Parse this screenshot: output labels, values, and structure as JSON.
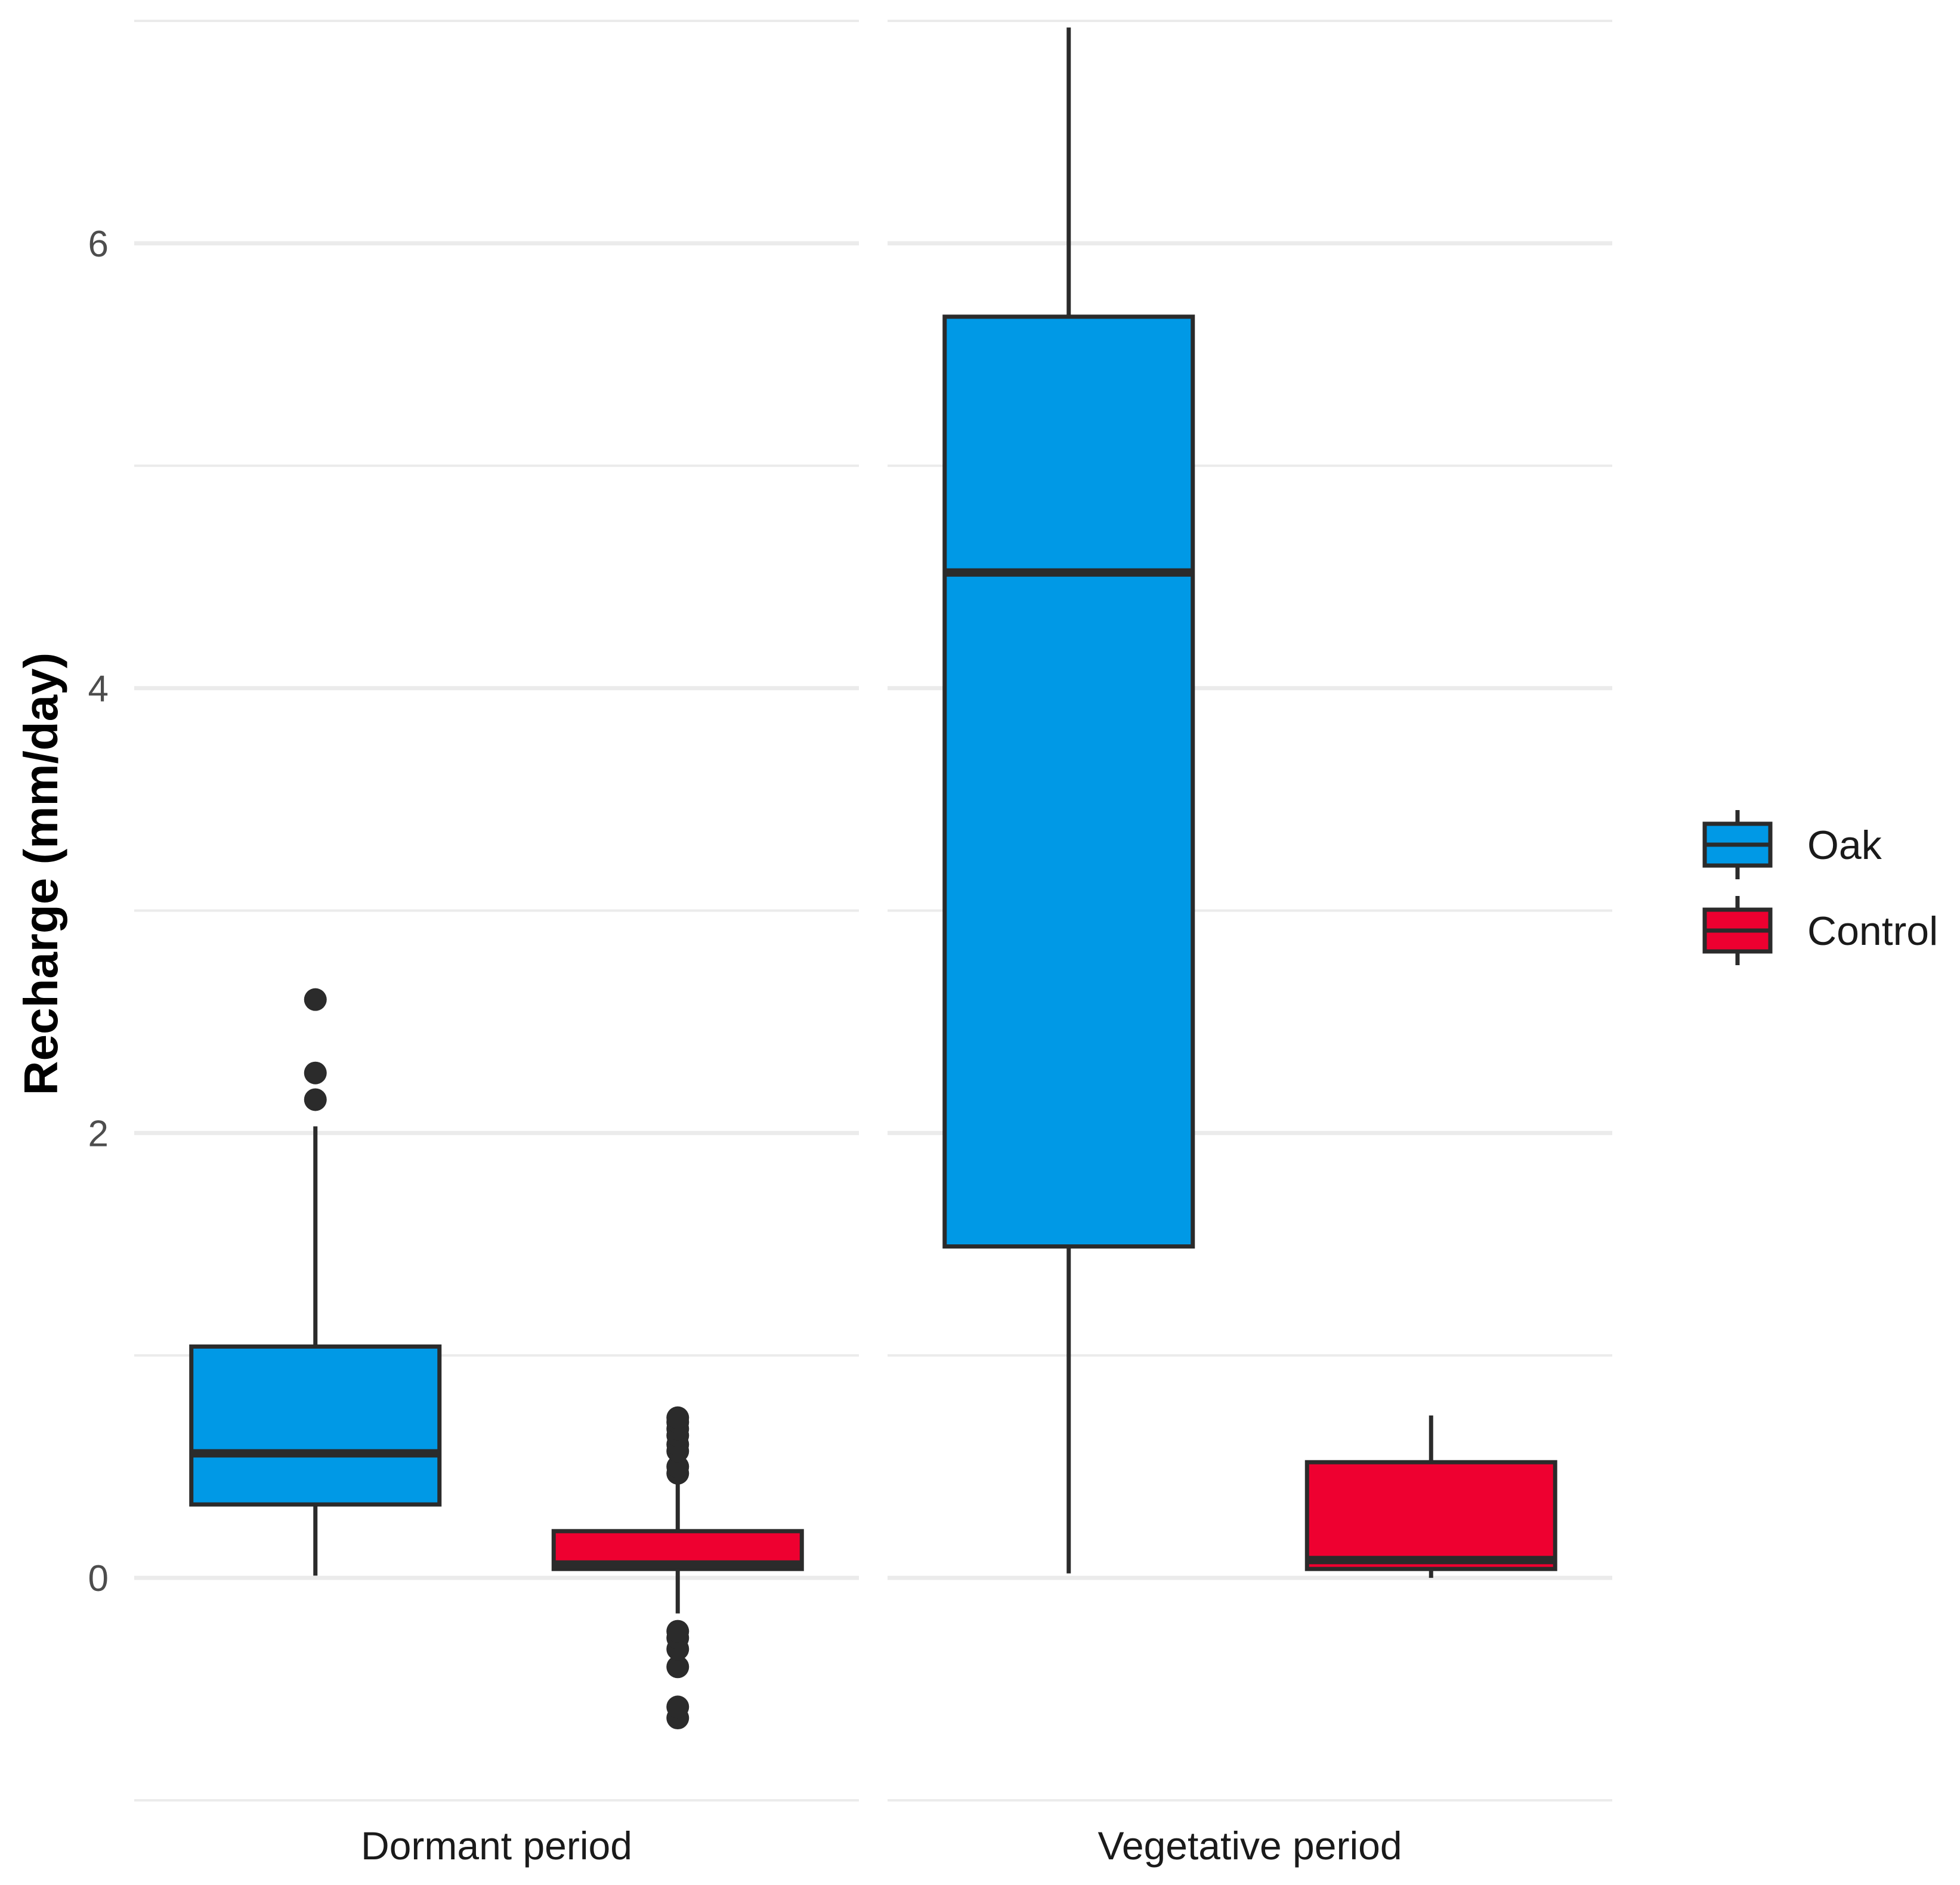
{
  "chart_data": {
    "type": "boxplot",
    "title": "",
    "xlabel": "",
    "ylabel": "Recharge (mm/day)",
    "ylim": [
      -1.0,
      7.0
    ],
    "yticks": [
      0,
      2,
      4,
      6
    ],
    "grid": true,
    "legend_position": "right",
    "panels": [
      "Dormant period",
      "Vegetative period"
    ],
    "series": [
      {
        "name": "Oak",
        "color": "#0099e6",
        "boxes": [
          {
            "panel": "Dormant period",
            "whisker_low": 0.01,
            "q1": 0.33,
            "median": 0.56,
            "q3": 1.04,
            "whisker_high": 2.03,
            "outliers": [
              2.15,
              2.27,
              2.6
            ]
          },
          {
            "panel": "Vegetative period",
            "whisker_low": 0.02,
            "q1": 1.49,
            "median": 4.52,
            "q3": 5.67,
            "whisker_high": 6.97,
            "outliers": []
          }
        ]
      },
      {
        "name": "Control",
        "color": "#ee0030",
        "boxes": [
          {
            "panel": "Dormant period",
            "whisker_low": -0.16,
            "q1": 0.04,
            "median": 0.06,
            "q3": 0.21,
            "whisker_high": 0.45,
            "outliers": [
              -0.63,
              -0.58,
              -0.4,
              -0.32,
              -0.27,
              -0.24,
              0.47,
              0.5,
              0.57,
              0.6,
              0.64,
              0.67,
              0.7,
              0.72
            ]
          },
          {
            "panel": "Vegetative period",
            "whisker_low": 0.0,
            "q1": 0.04,
            "median": 0.08,
            "q3": 0.52,
            "whisker_high": 0.73,
            "outliers": []
          }
        ]
      }
    ]
  }
}
